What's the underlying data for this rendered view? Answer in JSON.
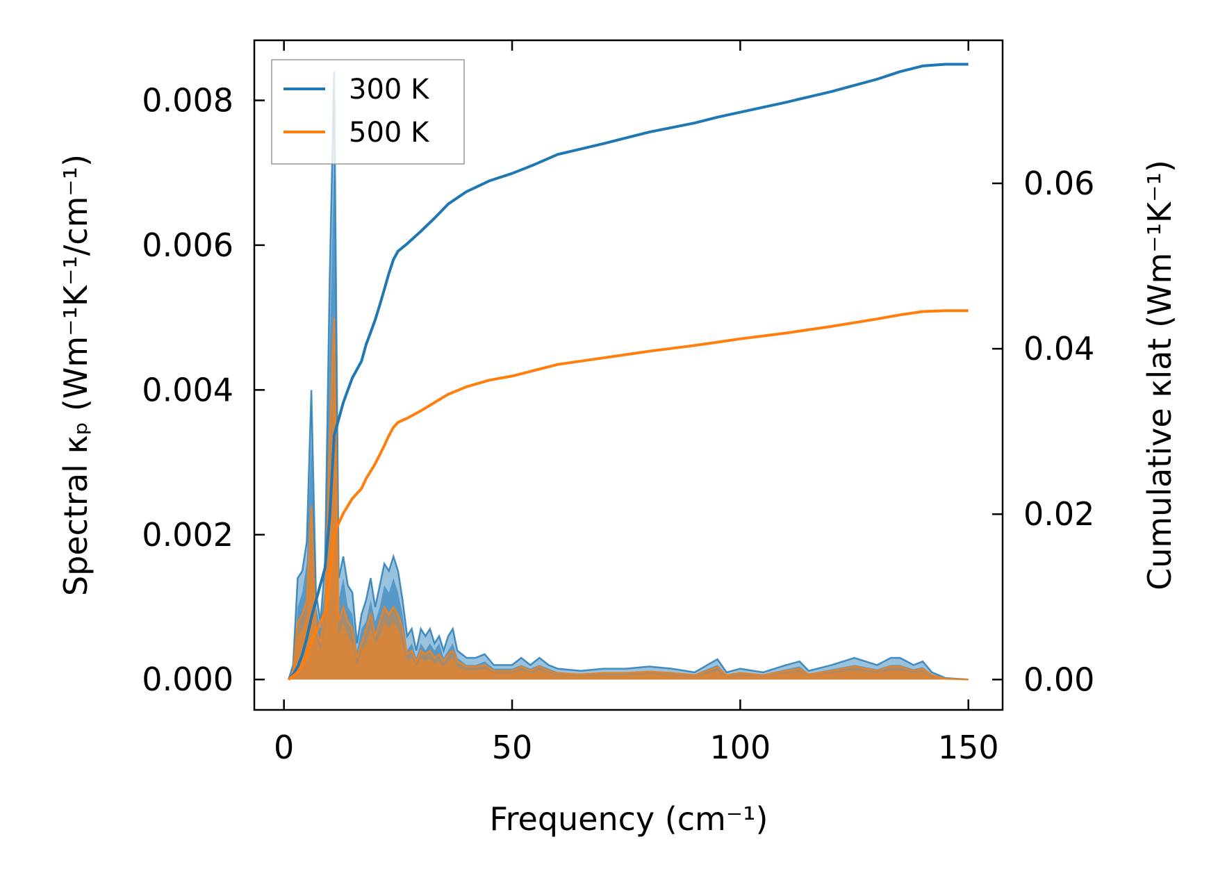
{
  "chart_data": {
    "type": "area",
    "xlabel": "Frequency (cm⁻¹)",
    "ylabel_left": "Spectral κₚ (Wm⁻¹K⁻¹/cm⁻¹)",
    "ylabel_right": "Cumulative κlat (Wm⁻¹K⁻¹)",
    "xlim": [
      -6.5,
      157.5
    ],
    "ylim_left": [
      -0.00042,
      0.00883
    ],
    "ylim_right": [
      -0.00367,
      0.0773
    ],
    "xticks": [
      0,
      50,
      100,
      150
    ],
    "yticks_left": [
      "0.000",
      "0.002",
      "0.004",
      "0.006",
      "0.008"
    ],
    "yticks_left_values": [
      0,
      0.002,
      0.004,
      0.006,
      0.008
    ],
    "yticks_right": [
      "0.00",
      "0.02",
      "0.04",
      "0.06"
    ],
    "yticks_right_values": [
      0,
      0.02,
      0.04,
      0.06
    ],
    "legend": {
      "position": "top-left",
      "entries": [
        "300 K",
        "500 K"
      ]
    },
    "series": [
      {
        "name": "300 K",
        "color": "#1f77b4",
        "spectral": {
          "x": [
            1,
            2,
            3,
            4,
            5,
            6,
            7,
            8,
            9,
            10,
            11,
            12,
            13,
            14,
            15,
            16,
            17,
            18,
            19,
            20,
            21,
            22,
            23,
            24,
            25,
            26,
            27,
            28,
            29,
            30,
            31,
            32,
            33,
            34,
            35,
            36,
            37,
            38,
            40,
            42,
            44,
            46,
            48,
            50,
            52,
            54,
            56,
            58,
            60,
            65,
            70,
            75,
            80,
            85,
            90,
            95,
            97,
            100,
            105,
            110,
            113,
            115,
            120,
            125,
            130,
            133,
            135,
            138,
            140,
            142,
            145,
            150
          ],
          "y": [
            0.0,
            0.0002,
            0.0014,
            0.0015,
            0.0019,
            0.004,
            0.0012,
            0.0008,
            0.0016,
            0.0055,
            0.0084,
            0.0014,
            0.0017,
            0.0013,
            0.0012,
            0.0005,
            0.0009,
            0.0011,
            0.0014,
            0.001,
            0.0013,
            0.0016,
            0.0015,
            0.0017,
            0.0015,
            0.0011,
            0.0006,
            0.0007,
            0.0004,
            0.0007,
            0.0006,
            0.0007,
            0.0005,
            0.0006,
            0.0004,
            0.0006,
            0.0007,
            0.0004,
            0.0003,
            0.0003,
            0.00035,
            0.0002,
            0.0002,
            0.0002,
            0.0003,
            0.0002,
            0.0003,
            0.0002,
            0.00015,
            0.00012,
            0.00015,
            0.00015,
            0.00018,
            0.00015,
            0.0001,
            0.00028,
            0.0001,
            0.00015,
            0.0001,
            0.0002,
            0.00025,
            0.00012,
            0.0002,
            0.0003,
            0.0002,
            0.0003,
            0.0003,
            0.0002,
            0.00025,
            0.0001,
            2e-05,
            0.0
          ],
          "y_lower": [
            0.0,
            0.0001,
            0.001,
            0.0012,
            0.0016,
            0.0033,
            0.001,
            0.0007,
            0.0013,
            0.0045,
            0.0072,
            0.0011,
            0.0014,
            0.001,
            0.0009,
            0.0004,
            0.0007,
            0.0008,
            0.0011,
            0.0008,
            0.001,
            0.0013,
            0.0012,
            0.0014,
            0.0012,
            0.0009,
            0.0004,
            0.0005,
            0.0003,
            0.0005,
            0.0004,
            0.0005,
            0.0004,
            0.0005,
            0.0003,
            0.0004,
            0.0005,
            0.0003,
            0.0002,
            0.0002,
            0.00025,
            0.00015,
            0.00015,
            0.00015,
            0.0002,
            0.00015,
            0.0002,
            0.00015,
            0.0001,
            8e-05,
            0.0001,
            0.0001,
            0.00012,
            0.0001,
            7e-05,
            0.0002,
            7e-05,
            0.0001,
            7e-05,
            0.00014,
            0.00018,
            8e-05,
            0.00014,
            0.0002,
            0.00014,
            0.0002,
            0.0002,
            0.00014,
            0.00017,
            7e-05,
            1e-05,
            0.0
          ]
        },
        "cumulative": {
          "x": [
            1,
            2,
            3,
            4,
            5,
            6,
            7,
            8,
            9,
            10,
            11,
            12,
            13,
            14,
            15,
            16,
            17,
            18,
            19,
            20,
            21,
            22,
            23,
            24,
            25,
            27,
            30,
            33,
            36,
            40,
            45,
            50,
            55,
            60,
            70,
            80,
            90,
            95,
            100,
            110,
            120,
            130,
            135,
            140,
            145,
            150
          ],
          "y": [
            0.0,
            0.0006,
            0.0015,
            0.003,
            0.005,
            0.0075,
            0.0095,
            0.0115,
            0.0135,
            0.0195,
            0.0295,
            0.0315,
            0.0335,
            0.035,
            0.0365,
            0.0375,
            0.0385,
            0.0405,
            0.042,
            0.0435,
            0.0453,
            0.0472,
            0.0491,
            0.0508,
            0.0518,
            0.0527,
            0.0542,
            0.0558,
            0.0575,
            0.059,
            0.0603,
            0.0612,
            0.0623,
            0.0635,
            0.0648,
            0.0662,
            0.0673,
            0.068,
            0.0686,
            0.0698,
            0.0711,
            0.0726,
            0.0735,
            0.0742,
            0.0744,
            0.0744
          ]
        }
      },
      {
        "name": "500 K",
        "color": "#ff7f0e",
        "spectral": {
          "x": [
            1,
            2,
            3,
            4,
            5,
            6,
            7,
            8,
            9,
            10,
            11,
            12,
            13,
            14,
            15,
            16,
            17,
            18,
            19,
            20,
            21,
            22,
            23,
            24,
            25,
            26,
            27,
            28,
            29,
            30,
            31,
            32,
            33,
            34,
            35,
            36,
            37,
            38,
            40,
            42,
            44,
            46,
            48,
            50,
            52,
            54,
            56,
            58,
            60,
            65,
            70,
            75,
            80,
            85,
            90,
            95,
            97,
            100,
            105,
            110,
            113,
            115,
            120,
            125,
            130,
            133,
            135,
            138,
            140,
            142,
            145,
            150
          ],
          "y": [
            0.0,
            0.0001,
            0.0008,
            0.0009,
            0.0011,
            0.0024,
            0.0007,
            0.0005,
            0.001,
            0.0033,
            0.005,
            0.0008,
            0.001,
            0.0008,
            0.0007,
            0.0003,
            0.0005,
            0.0007,
            0.0009,
            0.0006,
            0.0008,
            0.001,
            0.0009,
            0.001,
            0.0009,
            0.0007,
            0.00035,
            0.0004,
            0.00025,
            0.0004,
            0.00035,
            0.0004,
            0.0003,
            0.00035,
            0.00025,
            0.00035,
            0.0004,
            0.00025,
            0.00018,
            0.00018,
            0.0002,
            0.00012,
            0.00012,
            0.00012,
            0.00018,
            0.00012,
            0.00018,
            0.00012,
            9e-05,
            7e-05,
            9e-05,
            9e-05,
            0.00011,
            9e-05,
            6e-05,
            0.00017,
            6e-05,
            9e-05,
            6e-05,
            0.00012,
            0.00015,
            7e-05,
            0.00012,
            0.00018,
            0.00012,
            0.00018,
            0.00018,
            0.00012,
            0.00015,
            6e-05,
            1e-05,
            0.0
          ],
          "y_lower": [
            0.0,
            0.0001,
            0.0006,
            0.0007,
            0.0009,
            0.0019,
            0.0006,
            0.0004,
            0.0008,
            0.0027,
            0.0042,
            0.0006,
            0.0008,
            0.0006,
            0.0005,
            0.0002,
            0.0004,
            0.0005,
            0.0007,
            0.0005,
            0.0006,
            0.0008,
            0.0007,
            0.0008,
            0.0007,
            0.0005,
            0.00025,
            0.0003,
            0.0002,
            0.0003,
            0.00025,
            0.0003,
            0.00022,
            0.00025,
            0.00018,
            0.00025,
            0.0003,
            0.00018,
            0.00013,
            0.00013,
            0.00015,
            9e-05,
            9e-05,
            9e-05,
            0.00013,
            9e-05,
            0.00013,
            9e-05,
            6e-05,
            5e-05,
            6e-05,
            6e-05,
            8e-05,
            6e-05,
            4e-05,
            0.00012,
            4e-05,
            6e-05,
            4e-05,
            9e-05,
            0.00011,
            5e-05,
            9e-05,
            0.00013,
            9e-05,
            0.00013,
            0.00013,
            9e-05,
            0.00011,
            4e-05,
            1e-05,
            0.0
          ]
        },
        "cumulative": {
          "x": [
            1,
            2,
            3,
            4,
            5,
            6,
            7,
            8,
            9,
            10,
            11,
            12,
            13,
            14,
            15,
            16,
            17,
            18,
            19,
            20,
            21,
            22,
            23,
            24,
            25,
            27,
            30,
            33,
            36,
            40,
            45,
            50,
            55,
            60,
            70,
            80,
            90,
            95,
            100,
            110,
            120,
            130,
            135,
            140,
            145,
            150
          ],
          "y": [
            0.0,
            0.0004,
            0.0009,
            0.0018,
            0.003,
            0.0045,
            0.0057,
            0.0069,
            0.0081,
            0.0117,
            0.0177,
            0.0189,
            0.0201,
            0.021,
            0.0219,
            0.0225,
            0.0231,
            0.0243,
            0.0252,
            0.0261,
            0.0272,
            0.0283,
            0.0295,
            0.0305,
            0.0311,
            0.0316,
            0.0325,
            0.0335,
            0.0345,
            0.0354,
            0.0362,
            0.0367,
            0.0374,
            0.0381,
            0.0389,
            0.0397,
            0.0404,
            0.0408,
            0.0412,
            0.0419,
            0.0427,
            0.0436,
            0.0441,
            0.0445,
            0.0446,
            0.0446
          ]
        }
      }
    ]
  }
}
